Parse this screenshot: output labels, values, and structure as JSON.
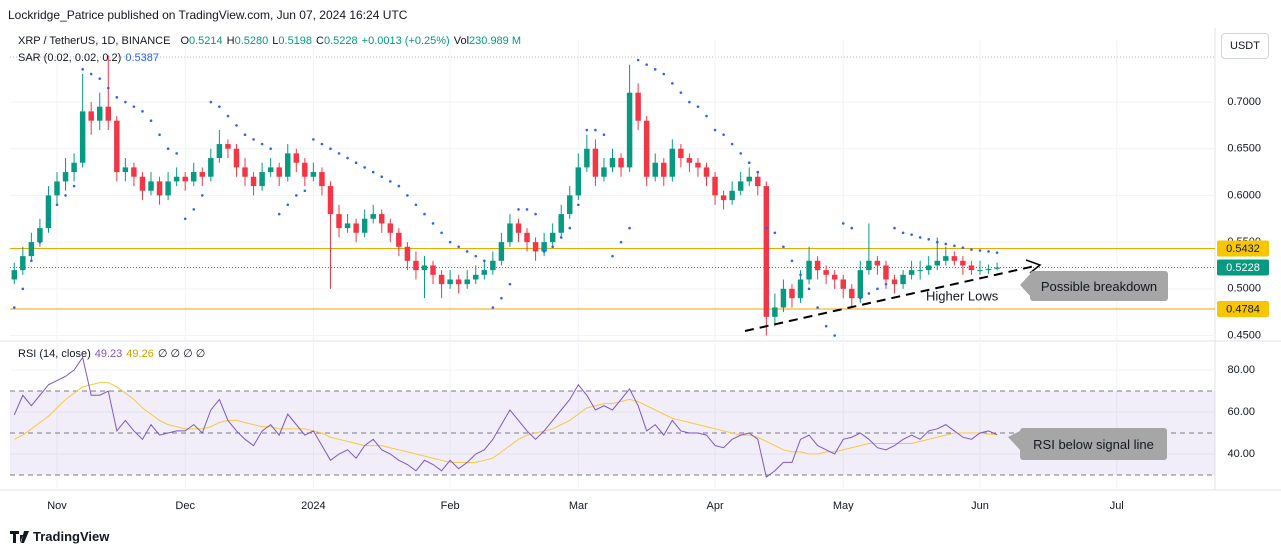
{
  "header": "Lockridge_Patrice published on TradingView.com, Jun 07, 2024 16:24 UTC",
  "footer": "TradingView",
  "currency": "USDT",
  "legend": {
    "symbol": "XRP / TetherUS, 1D, BINANCE",
    "open_label": "O",
    "open": "0.5214",
    "high_label": "H",
    "high": "0.5280",
    "low_label": "L",
    "low": "0.5198",
    "close_label": "C",
    "close": "0.5228",
    "change": "+0.0013 (+0.25%)",
    "volume_label": "Vol",
    "volume": "230.989 M"
  },
  "chart_data": {
    "type": "candlestick",
    "up_color": "#089981",
    "down_color": "#f23645",
    "xlim": [
      -0.5,
      140.5
    ],
    "xticks": [
      {
        "value": 5,
        "label": "Nov"
      },
      {
        "value": 20,
        "label": "Dec"
      },
      {
        "value": 35,
        "label": "2024"
      },
      {
        "value": 51,
        "label": "Feb"
      },
      {
        "value": 66,
        "label": "Mar"
      },
      {
        "value": 82,
        "label": "Apr"
      },
      {
        "value": 97,
        "label": "May"
      },
      {
        "value": 113,
        "label": "Jun"
      },
      {
        "value": 129,
        "label": "Jul"
      }
    ],
    "ylim": [
      0.4452,
      0.7664
    ],
    "yticks": [
      {
        "value": 0.45,
        "label": "0.4500"
      },
      {
        "value": 0.5,
        "label": "0.5000"
      },
      {
        "value": 0.55,
        "label": "0.5500"
      },
      {
        "value": 0.6,
        "label": "0.6000"
      },
      {
        "value": 0.65,
        "label": "0.6500"
      },
      {
        "value": 0.7,
        "label": "0.7000"
      }
    ],
    "grid": true,
    "levels": [
      {
        "value": 0.5432,
        "line_color": "#f0a500",
        "label_color": "#f7c600"
      },
      {
        "value": 0.5228,
        "line_color": "#f23645",
        "label_color": "#089981"
      },
      {
        "value": 0.4784,
        "line_color": "#f0a500",
        "label_color": "#f7c600"
      }
    ],
    "candles": [
      [
        0.51,
        0.528,
        0.505,
        0.52
      ],
      [
        0.52,
        0.545,
        0.515,
        0.535
      ],
      [
        0.535,
        0.56,
        0.53,
        0.55
      ],
      [
        0.55,
        0.575,
        0.545,
        0.565
      ],
      [
        0.565,
        0.61,
        0.56,
        0.6
      ],
      [
        0.6,
        0.625,
        0.59,
        0.615
      ],
      [
        0.615,
        0.64,
        0.605,
        0.625
      ],
      [
        0.625,
        0.645,
        0.615,
        0.635
      ],
      [
        0.635,
        0.73,
        0.63,
        0.69
      ],
      [
        0.69,
        0.7,
        0.665,
        0.68
      ],
      [
        0.68,
        0.71,
        0.67,
        0.695
      ],
      [
        0.695,
        0.75,
        0.67,
        0.68
      ],
      [
        0.68,
        0.685,
        0.615,
        0.625
      ],
      [
        0.625,
        0.64,
        0.615,
        0.63
      ],
      [
        0.63,
        0.635,
        0.61,
        0.62
      ],
      [
        0.62,
        0.625,
        0.595,
        0.605
      ],
      [
        0.605,
        0.625,
        0.6,
        0.615
      ],
      [
        0.615,
        0.62,
        0.59,
        0.6
      ],
      [
        0.6,
        0.625,
        0.595,
        0.615
      ],
      [
        0.615,
        0.63,
        0.61,
        0.62
      ],
      [
        0.62,
        0.625,
        0.605,
        0.615
      ],
      [
        0.615,
        0.635,
        0.61,
        0.625
      ],
      [
        0.625,
        0.63,
        0.61,
        0.62
      ],
      [
        0.62,
        0.65,
        0.615,
        0.64
      ],
      [
        0.64,
        0.67,
        0.635,
        0.655
      ],
      [
        0.655,
        0.66,
        0.64,
        0.65
      ],
      [
        0.65,
        0.655,
        0.62,
        0.63
      ],
      [
        0.63,
        0.64,
        0.61,
        0.62
      ],
      [
        0.62,
        0.625,
        0.6,
        0.61
      ],
      [
        0.61,
        0.635,
        0.605,
        0.625
      ],
      [
        0.625,
        0.64,
        0.62,
        0.63
      ],
      [
        0.63,
        0.635,
        0.61,
        0.62
      ],
      [
        0.62,
        0.655,
        0.615,
        0.645
      ],
      [
        0.645,
        0.65,
        0.625,
        0.635
      ],
      [
        0.635,
        0.64,
        0.61,
        0.62
      ],
      [
        0.62,
        0.635,
        0.615,
        0.625
      ],
      [
        0.625,
        0.63,
        0.6,
        0.61
      ],
      [
        0.61,
        0.615,
        0.5,
        0.58
      ],
      [
        0.58,
        0.59,
        0.555,
        0.565
      ],
      [
        0.565,
        0.58,
        0.56,
        0.57
      ],
      [
        0.57,
        0.575,
        0.55,
        0.56
      ],
      [
        0.56,
        0.585,
        0.555,
        0.575
      ],
      [
        0.575,
        0.59,
        0.57,
        0.58
      ],
      [
        0.58,
        0.585,
        0.56,
        0.57
      ],
      [
        0.57,
        0.575,
        0.55,
        0.56
      ],
      [
        0.56,
        0.565,
        0.535,
        0.545
      ],
      [
        0.545,
        0.55,
        0.52,
        0.53
      ],
      [
        0.53,
        0.54,
        0.51,
        0.52
      ],
      [
        0.52,
        0.535,
        0.49,
        0.525
      ],
      [
        0.525,
        0.53,
        0.505,
        0.515
      ],
      [
        0.515,
        0.52,
        0.49,
        0.505
      ],
      [
        0.505,
        0.52,
        0.5,
        0.51
      ],
      [
        0.51,
        0.515,
        0.495,
        0.505
      ],
      [
        0.505,
        0.52,
        0.5,
        0.51
      ],
      [
        0.51,
        0.525,
        0.505,
        0.515
      ],
      [
        0.515,
        0.53,
        0.51,
        0.52
      ],
      [
        0.52,
        0.54,
        0.515,
        0.53
      ],
      [
        0.53,
        0.56,
        0.525,
        0.55
      ],
      [
        0.55,
        0.58,
        0.545,
        0.57
      ],
      [
        0.57,
        0.575,
        0.55,
        0.56
      ],
      [
        0.56,
        0.565,
        0.54,
        0.55
      ],
      [
        0.55,
        0.555,
        0.53,
        0.54
      ],
      [
        0.54,
        0.56,
        0.535,
        0.55
      ],
      [
        0.55,
        0.57,
        0.545,
        0.56
      ],
      [
        0.56,
        0.59,
        0.555,
        0.58
      ],
      [
        0.58,
        0.61,
        0.575,
        0.6
      ],
      [
        0.6,
        0.645,
        0.595,
        0.63
      ],
      [
        0.63,
        0.665,
        0.625,
        0.65
      ],
      [
        0.65,
        0.66,
        0.61,
        0.62
      ],
      [
        0.62,
        0.64,
        0.615,
        0.63
      ],
      [
        0.63,
        0.65,
        0.625,
        0.64
      ],
      [
        0.64,
        0.645,
        0.62,
        0.63
      ],
      [
        0.63,
        0.74,
        0.625,
        0.71
      ],
      [
        0.71,
        0.72,
        0.67,
        0.68
      ],
      [
        0.68,
        0.685,
        0.61,
        0.62
      ],
      [
        0.62,
        0.645,
        0.615,
        0.635
      ],
      [
        0.635,
        0.64,
        0.61,
        0.62
      ],
      [
        0.62,
        0.66,
        0.615,
        0.65
      ],
      [
        0.65,
        0.655,
        0.63,
        0.64
      ],
      [
        0.64,
        0.645,
        0.625,
        0.635
      ],
      [
        0.635,
        0.64,
        0.62,
        0.63
      ],
      [
        0.63,
        0.635,
        0.61,
        0.62
      ],
      [
        0.62,
        0.625,
        0.59,
        0.6
      ],
      [
        0.6,
        0.605,
        0.585,
        0.595
      ],
      [
        0.595,
        0.615,
        0.59,
        0.605
      ],
      [
        0.605,
        0.625,
        0.6,
        0.615
      ],
      [
        0.615,
        0.63,
        0.61,
        0.62
      ],
      [
        0.62,
        0.625,
        0.6,
        0.61
      ],
      [
        0.61,
        0.615,
        0.45,
        0.47
      ],
      [
        0.47,
        0.495,
        0.46,
        0.48
      ],
      [
        0.48,
        0.51,
        0.475,
        0.5
      ],
      [
        0.5,
        0.505,
        0.48,
        0.49
      ],
      [
        0.49,
        0.52,
        0.485,
        0.51
      ],
      [
        0.51,
        0.545,
        0.505,
        0.53
      ],
      [
        0.53,
        0.535,
        0.51,
        0.52
      ],
      [
        0.52,
        0.525,
        0.505,
        0.515
      ],
      [
        0.515,
        0.52,
        0.5,
        0.51
      ],
      [
        0.51,
        0.515,
        0.49,
        0.5
      ],
      [
        0.5,
        0.505,
        0.48,
        0.49
      ],
      [
        0.49,
        0.53,
        0.485,
        0.52
      ],
      [
        0.52,
        0.57,
        0.515,
        0.53
      ],
      [
        0.53,
        0.535,
        0.515,
        0.525
      ],
      [
        0.525,
        0.53,
        0.5,
        0.51
      ],
      [
        0.51,
        0.515,
        0.495,
        0.505
      ],
      [
        0.505,
        0.52,
        0.5,
        0.515
      ],
      [
        0.515,
        0.53,
        0.51,
        0.52
      ],
      [
        0.52,
        0.53,
        0.51,
        0.52
      ],
      [
        0.52,
        0.535,
        0.515,
        0.525
      ],
      [
        0.525,
        0.555,
        0.52,
        0.53
      ],
      [
        0.53,
        0.545,
        0.525,
        0.535
      ],
      [
        0.535,
        0.54,
        0.525,
        0.53
      ],
      [
        0.53,
        0.535,
        0.515,
        0.525
      ],
      [
        0.525,
        0.53,
        0.515,
        0.52
      ],
      [
        0.52,
        0.53,
        0.515,
        0.52
      ],
      [
        0.52,
        0.526,
        0.516,
        0.5214
      ],
      [
        0.5214,
        0.528,
        0.5198,
        0.5228
      ]
    ],
    "sar": {
      "name": "SAR (0.02, 0.02, 0.2)",
      "color": "#2962ff",
      "values": [
        0.48,
        0.5,
        0.53,
        0.55,
        0.575,
        0.59,
        0.6,
        0.61,
        0.735,
        0.73,
        0.725,
        0.715,
        0.705,
        0.7,
        0.695,
        0.69,
        0.68,
        0.665,
        0.65,
        0.645,
        0.575,
        0.585,
        0.6,
        0.7,
        0.695,
        0.685,
        0.675,
        0.665,
        0.66,
        0.655,
        0.65,
        0.58,
        0.59,
        0.6,
        0.605,
        0.66,
        0.655,
        0.65,
        0.645,
        0.64,
        0.635,
        0.63,
        0.625,
        0.62,
        0.615,
        0.61,
        0.6,
        0.59,
        0.58,
        0.57,
        0.56,
        0.55,
        0.545,
        0.54,
        0.535,
        0.53,
        0.48,
        0.49,
        0.505,
        0.585,
        0.585,
        0.58,
        0.54,
        0.545,
        0.555,
        0.565,
        0.59,
        0.67,
        0.67,
        0.665,
        0.535,
        0.55,
        0.565,
        0.745,
        0.74,
        0.735,
        0.73,
        0.72,
        0.71,
        0.7,
        0.695,
        0.685,
        0.67,
        0.665,
        0.655,
        0.645,
        0.635,
        0.625,
        0.565,
        0.56,
        0.545,
        0.53,
        0.515,
        0.5,
        0.48,
        0.46,
        0.45,
        0.57,
        0.565,
        0.49,
        0.495,
        0.5,
        0.505,
        0.565,
        0.56,
        0.558,
        0.555,
        0.553,
        0.55,
        0.548,
        0.546,
        0.544,
        0.542,
        0.541,
        0.54,
        0.5387
      ]
    },
    "rsi": {
      "name": "RSI (14, close)",
      "color": "#7e57c2",
      "extra": "∅ ∅ ∅ ∅",
      "ylim": [
        23.8,
        92.9
      ],
      "yticks": [
        {
          "value": 40,
          "label": "40.00"
        },
        {
          "value": 60,
          "label": "60.00"
        },
        {
          "value": 80,
          "label": "80.00"
        }
      ],
      "levels": [
        70,
        50,
        30
      ],
      "values": [
        58.6,
        68,
        63,
        68,
        73,
        75,
        77,
        80,
        86,
        68,
        68,
        70,
        51,
        56,
        51,
        47,
        54,
        49,
        50,
        51,
        51,
        54,
        50,
        61,
        66,
        56,
        51,
        47,
        44,
        51,
        54,
        49,
        59,
        54,
        49,
        51,
        44,
        37,
        40,
        42,
        38,
        44,
        47,
        42,
        40,
        37,
        35,
        32,
        37,
        35,
        32,
        37,
        33,
        36,
        40,
        42,
        47,
        54,
        61,
        56,
        51,
        47,
        51,
        56,
        61,
        66,
        73,
        68,
        61,
        63,
        61,
        66,
        71,
        63,
        51,
        54,
        49,
        56,
        51,
        50,
        50,
        49,
        44,
        43,
        47,
        49,
        50,
        47,
        29,
        32,
        36,
        36,
        47,
        49,
        44,
        42,
        40,
        47,
        48,
        50,
        47,
        43,
        42,
        44,
        47,
        49,
        47,
        51,
        52,
        54,
        51,
        48,
        47,
        50,
        51,
        49.23
      ],
      "signal": {
        "color": "#f5c842",
        "values": [
          47,
          49,
          52,
          55,
          58,
          62,
          66,
          69,
          72,
          73,
          74,
          74,
          72,
          69,
          66,
          62,
          59,
          56,
          54,
          53,
          52,
          52,
          52,
          53,
          55,
          56,
          56,
          55,
          54,
          53,
          53,
          52,
          52,
          52,
          52,
          51,
          50,
          48,
          47,
          46,
          45,
          44,
          44,
          44,
          43,
          42,
          41,
          40,
          39,
          38,
          37,
          36,
          36,
          36,
          36,
          37,
          38,
          41,
          44,
          47,
          49,
          50,
          51,
          52,
          54,
          56,
          59,
          62,
          63,
          64,
          64,
          65,
          66,
          65,
          63,
          61,
          59,
          57,
          56,
          55,
          54,
          53,
          52,
          51,
          50,
          49,
          49,
          48,
          46,
          44,
          42,
          41,
          41,
          40,
          40,
          41,
          41,
          42,
          43,
          44,
          45,
          45,
          45,
          45,
          45,
          45,
          46,
          47,
          48,
          49,
          50,
          50,
          50,
          50,
          49.5,
          49.26
        ]
      }
    },
    "annotations": [
      "Possible breakdown",
      "Higher Lows",
      "RSI below signal line"
    ]
  }
}
